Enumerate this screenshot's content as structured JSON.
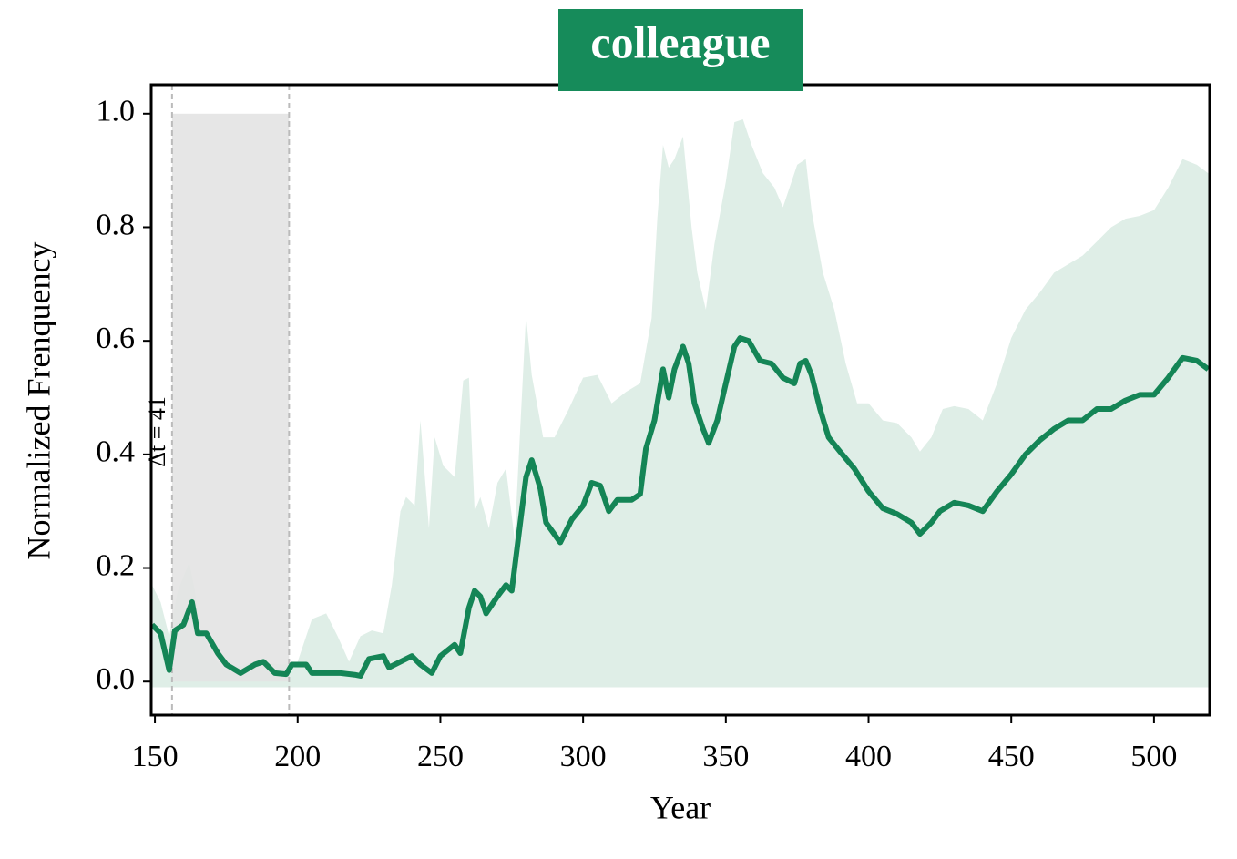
{
  "chart_data": {
    "type": "line",
    "title": "colleague",
    "title_color": "#168b5a",
    "xlabel": "Year",
    "ylabel": "Normalized Frenquency",
    "xlim": [
      148.7,
      519.5
    ],
    "ylim": [
      -0.059,
      1.051
    ],
    "xticks": [
      150,
      200,
      250,
      300,
      350,
      400,
      450,
      500
    ],
    "yticks": [
      {
        "value": 0,
        "label": "0.0"
      },
      0.2,
      0.4,
      0.6,
      0.8,
      {
        "value": 1,
        "label": "1.0"
      }
    ],
    "annotation": "Δt = 41",
    "span": {
      "x": [
        156,
        197
      ],
      "y": [
        0,
        1
      ],
      "color": "#e3e3e3"
    },
    "line": {
      "color": "#148556",
      "x": [
        149,
        152,
        155,
        157,
        160,
        163,
        165,
        168,
        172,
        175,
        180,
        185,
        188,
        192,
        196,
        198,
        203,
        205,
        210,
        215,
        220,
        222,
        225,
        230,
        232,
        236,
        240,
        243,
        247,
        250,
        255,
        257,
        260,
        262,
        264,
        266,
        270,
        273,
        275,
        278,
        280,
        282,
        285,
        287,
        292,
        296,
        300,
        303,
        306,
        309,
        312,
        317,
        320,
        322,
        325,
        328,
        330,
        332,
        335,
        337,
        339,
        342,
        344,
        347,
        350,
        353,
        355,
        358,
        362,
        366,
        370,
        374,
        376,
        378,
        380,
        383,
        386,
        390,
        395,
        400,
        405,
        410,
        415,
        418,
        422,
        425,
        430,
        435,
        440,
        445,
        450,
        455,
        460,
        465,
        470,
        475,
        480,
        485,
        490,
        495,
        500,
        505,
        510,
        515,
        519
      ],
      "values": [
        0.1,
        0.085,
        0.02,
        0.09,
        0.1,
        0.14,
        0.085,
        0.085,
        0.05,
        0.03,
        0.015,
        0.03,
        0.035,
        0.015,
        0.013,
        0.03,
        0.03,
        0.015,
        0.015,
        0.015,
        0.012,
        0.01,
        0.04,
        0.045,
        0.025,
        0.035,
        0.045,
        0.03,
        0.015,
        0.045,
        0.065,
        0.05,
        0.13,
        0.16,
        0.15,
        0.12,
        0.15,
        0.17,
        0.16,
        0.28,
        0.36,
        0.39,
        0.34,
        0.28,
        0.245,
        0.285,
        0.31,
        0.35,
        0.345,
        0.3,
        0.32,
        0.32,
        0.33,
        0.41,
        0.46,
        0.55,
        0.5,
        0.55,
        0.59,
        0.56,
        0.49,
        0.445,
        0.42,
        0.46,
        0.525,
        0.59,
        0.605,
        0.6,
        0.565,
        0.56,
        0.535,
        0.525,
        0.56,
        0.565,
        0.54,
        0.48,
        0.43,
        0.405,
        0.375,
        0.335,
        0.305,
        0.295,
        0.28,
        0.26,
        0.28,
        0.3,
        0.315,
        0.31,
        0.3,
        0.335,
        0.365,
        0.4,
        0.425,
        0.445,
        0.46,
        0.46,
        0.48,
        0.48,
        0.495,
        0.505,
        0.505,
        0.535,
        0.57,
        0.565,
        0.55
      ]
    },
    "band": {
      "color": "#dfeee7",
      "baseline": -0.01,
      "x": [
        149,
        152,
        155,
        158,
        162,
        164,
        166,
        170,
        175,
        185,
        195,
        200,
        205,
        210,
        214,
        218,
        222,
        226,
        230,
        233,
        236,
        238,
        241,
        243,
        246,
        248,
        251,
        255,
        258,
        260,
        262,
        264,
        267,
        270,
        273,
        276,
        280,
        282,
        286,
        290,
        295,
        300,
        305,
        310,
        315,
        320,
        324,
        326,
        328,
        330,
        332,
        335,
        338,
        340,
        343,
        346,
        350,
        353,
        356,
        359,
        363,
        367,
        370,
        373,
        375,
        378,
        380,
        384,
        388,
        392,
        396,
        400,
        405,
        410,
        415,
        418,
        422,
        426,
        430,
        435,
        440,
        445,
        450,
        455,
        460,
        465,
        470,
        475,
        480,
        485,
        490,
        495,
        500,
        505,
        510,
        515,
        519
      ],
      "upper": [
        0.17,
        0.14,
        0.08,
        0.16,
        0.21,
        0.16,
        0.09,
        0.045,
        0.02,
        0.035,
        0.03,
        0.035,
        0.11,
        0.12,
        0.08,
        0.035,
        0.08,
        0.09,
        0.085,
        0.17,
        0.3,
        0.325,
        0.31,
        0.46,
        0.27,
        0.43,
        0.38,
        0.36,
        0.53,
        0.535,
        0.3,
        0.325,
        0.27,
        0.35,
        0.375,
        0.25,
        0.645,
        0.54,
        0.43,
        0.43,
        0.48,
        0.535,
        0.54,
        0.49,
        0.51,
        0.525,
        0.64,
        0.815,
        0.945,
        0.905,
        0.92,
        0.96,
        0.8,
        0.72,
        0.655,
        0.77,
        0.88,
        0.985,
        0.99,
        0.945,
        0.895,
        0.87,
        0.835,
        0.88,
        0.91,
        0.92,
        0.83,
        0.72,
        0.655,
        0.56,
        0.49,
        0.49,
        0.46,
        0.455,
        0.43,
        0.405,
        0.43,
        0.48,
        0.485,
        0.48,
        0.46,
        0.525,
        0.605,
        0.655,
        0.685,
        0.72,
        0.735,
        0.75,
        0.775,
        0.8,
        0.815,
        0.82,
        0.83,
        0.87,
        0.92,
        0.91,
        0.895
      ]
    }
  }
}
